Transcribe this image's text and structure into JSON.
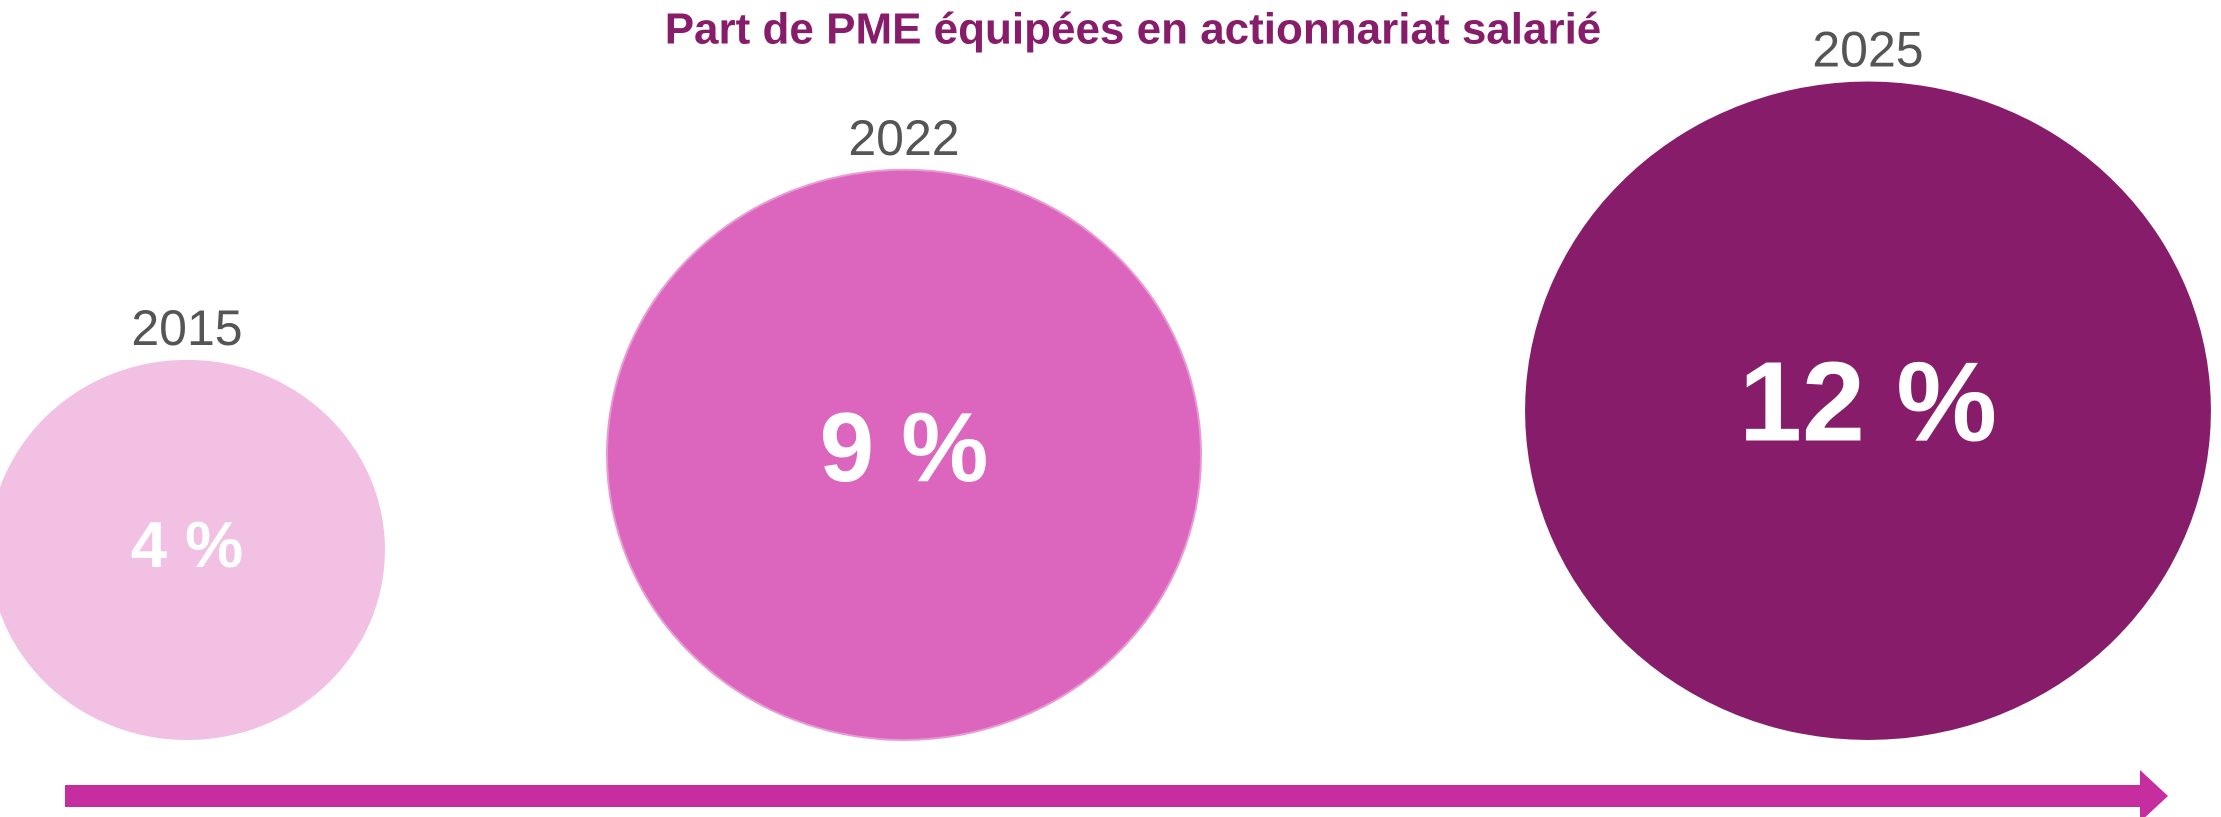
{
  "chart_data": {
    "type": "bubble",
    "title": "Part de PME équipées en actionnariat salarié",
    "categories": [
      "2015",
      "2022",
      "2025"
    ],
    "values": [
      4,
      9,
      12
    ],
    "value_labels": [
      "4 %",
      "9 %",
      "12 %"
    ],
    "colors": [
      "#f1c0e3",
      "#dc65be",
      "#861c6a"
    ]
  }
}
